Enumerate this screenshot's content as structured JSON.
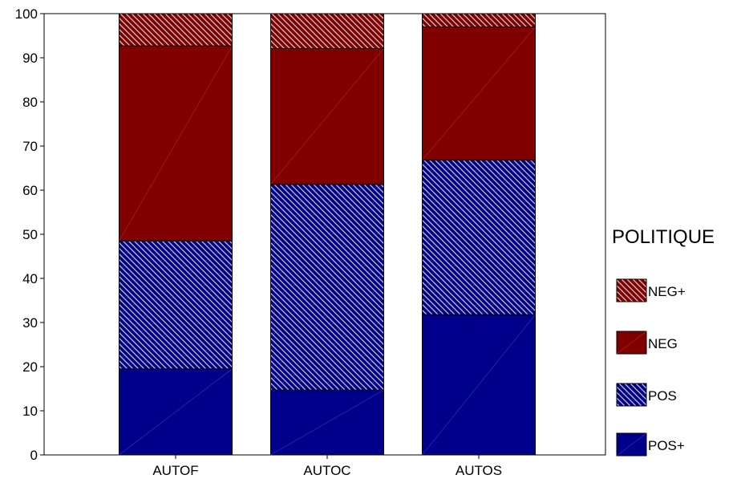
{
  "chart_data": {
    "type": "bar",
    "stacked": true,
    "categories": [
      "AUTOF",
      "AUTOC",
      "AUTOS"
    ],
    "series": [
      {
        "name": "POS+",
        "values": [
          19.5,
          14.7,
          31.8
        ],
        "color": "#00008B",
        "pattern": "solid"
      },
      {
        "name": "POS",
        "values": [
          29.0,
          46.6,
          35.0
        ],
        "color": "#00008B",
        "pattern": "hatched"
      },
      {
        "name": "NEG",
        "values": [
          44.2,
          30.8,
          30.2
        ],
        "color": "#800000",
        "pattern": "solid"
      },
      {
        "name": "NEG+",
        "values": [
          7.3,
          7.9,
          3.0
        ],
        "color": "#800000",
        "pattern": "hatched"
      }
    ],
    "ylim": [
      0,
      100
    ],
    "yticks": [
      0,
      10,
      20,
      30,
      40,
      50,
      60,
      70,
      80,
      90,
      100
    ],
    "legend": {
      "title": "POLITIQUE",
      "placement": "right",
      "order": [
        "NEG+",
        "NEG",
        "POS",
        "POS+"
      ]
    },
    "grid": false
  }
}
